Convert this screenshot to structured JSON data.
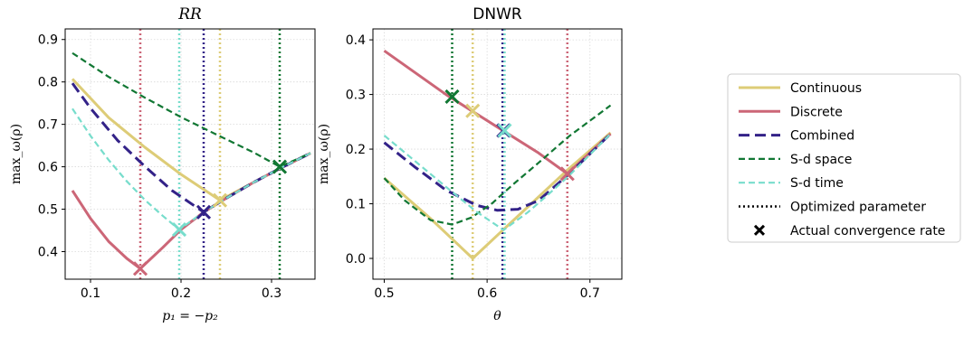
{
  "series_styles": {
    "Continuous": {
      "color": "#DDCC77",
      "dash": "",
      "width": 3
    },
    "Discrete": {
      "color": "#CC6677",
      "dash": "",
      "width": 3
    },
    "Combined": {
      "color": "#332288",
      "dash": "12,6",
      "width": 3
    },
    "S-d space": {
      "color": "#117733",
      "dash": "7,4",
      "width": 2.2
    },
    "S-d time": {
      "color": "#77DDCC",
      "dash": "7,4",
      "width": 2.2
    },
    "Optimized parameter": {
      "color": "#000000",
      "dash": "2,3",
      "width": 2.5
    }
  },
  "legend": {
    "placement": "right",
    "entries": [
      {
        "label": "Continuous",
        "kind": "solid"
      },
      {
        "label": "Discrete",
        "kind": "solid"
      },
      {
        "label": "Combined",
        "kind": "dashed"
      },
      {
        "label": "S-d space",
        "kind": "dashed"
      },
      {
        "label": "S-d time",
        "kind": "dashed"
      },
      {
        "label": "Optimized parameter",
        "kind": "dotted"
      },
      {
        "label": "Actual convergence rate",
        "kind": "marker"
      }
    ]
  },
  "chart_data": [
    {
      "type": "line",
      "title": "RR",
      "xlabel": "p₁ = −p₂",
      "ylabel": "max_ω(ρ)",
      "xlim": [
        0.072,
        0.348
      ],
      "ylim": [
        0.335,
        0.925
      ],
      "xticks": [
        0.1,
        0.2,
        0.3
      ],
      "xtick_labels": [
        "0.1",
        "0.2",
        "0.3"
      ],
      "yticks": [
        0.4,
        0.5,
        0.6,
        0.7,
        0.8,
        0.9
      ],
      "ytick_labels": [
        "0.4",
        "0.5",
        "0.6",
        "0.7",
        "0.8",
        "0.9"
      ],
      "grid": true,
      "series": [
        {
          "name": "Continuous",
          "x": [
            0.08,
            0.12,
            0.16,
            0.2,
            0.243,
            0.28,
            0.31,
            0.343
          ],
          "y": [
            0.807,
            0.716,
            0.646,
            0.582,
            0.521,
            0.563,
            0.597,
            0.632
          ]
        },
        {
          "name": "Discrete",
          "x": [
            0.08,
            0.1,
            0.12,
            0.14,
            0.155,
            0.18,
            0.2,
            0.225,
            0.25,
            0.28,
            0.31,
            0.343
          ],
          "y": [
            0.544,
            0.478,
            0.424,
            0.384,
            0.36,
            0.41,
            0.452,
            0.493,
            0.526,
            0.563,
            0.597,
            0.632
          ]
        },
        {
          "name": "Combined",
          "x": [
            0.08,
            0.1,
            0.13,
            0.16,
            0.19,
            0.225,
            0.25,
            0.28,
            0.31,
            0.343
          ],
          "y": [
            0.797,
            0.738,
            0.662,
            0.601,
            0.544,
            0.493,
            0.526,
            0.563,
            0.597,
            0.632
          ]
        },
        {
          "name": "S-d space",
          "x": [
            0.08,
            0.12,
            0.16,
            0.2,
            0.24,
            0.28,
            0.309,
            0.343
          ],
          "y": [
            0.868,
            0.812,
            0.763,
            0.717,
            0.675,
            0.634,
            0.6,
            0.632
          ]
        },
        {
          "name": "S-d time",
          "x": [
            0.08,
            0.1,
            0.12,
            0.14,
            0.16,
            0.18,
            0.198,
            0.225,
            0.25,
            0.28,
            0.31,
            0.343
          ],
          "y": [
            0.737,
            0.673,
            0.616,
            0.566,
            0.522,
            0.484,
            0.452,
            0.493,
            0.526,
            0.563,
            0.597,
            0.632
          ]
        }
      ],
      "optimized_parameter": [
        {
          "series": "Discrete",
          "x": 0.155
        },
        {
          "series": "S-d time",
          "x": 0.198
        },
        {
          "series": "Combined",
          "x": 0.225
        },
        {
          "series": "Continuous",
          "x": 0.243
        },
        {
          "series": "S-d space",
          "x": 0.309
        }
      ],
      "actual_convergence_rate": [
        {
          "series": "Discrete",
          "x": 0.155,
          "y": 0.36
        },
        {
          "series": "S-d time",
          "x": 0.198,
          "y": 0.452
        },
        {
          "series": "Combined",
          "x": 0.225,
          "y": 0.493
        },
        {
          "series": "Continuous",
          "x": 0.243,
          "y": 0.521
        },
        {
          "series": "S-d space",
          "x": 0.309,
          "y": 0.6
        }
      ]
    },
    {
      "type": "line",
      "title": "DNWR",
      "xlabel": "θ",
      "ylabel": "max_ω(ρ)",
      "xlim": [
        0.489,
        0.731
      ],
      "ylim": [
        -0.038,
        0.42
      ],
      "xticks": [
        0.5,
        0.6,
        0.7
      ],
      "xtick_labels": [
        "0.5",
        "0.6",
        "0.7"
      ],
      "yticks": [
        0.0,
        0.1,
        0.2,
        0.3,
        0.4
      ],
      "ytick_labels": [
        "0.0",
        "0.1",
        "0.2",
        "0.3",
        "0.4"
      ],
      "grid": true,
      "series": [
        {
          "name": "Continuous",
          "x": [
            0.5,
            0.545,
            0.586,
            0.62,
            0.68,
            0.72
          ],
          "y": [
            0.147,
            0.073,
            0.0,
            0.06,
            0.165,
            0.23
          ]
        },
        {
          "name": "Discrete",
          "x": [
            0.5,
            0.56,
            0.617,
            0.65,
            0.678,
            0.72
          ],
          "y": [
            0.38,
            0.3,
            0.232,
            0.193,
            0.155,
            0.228
          ]
        },
        {
          "name": "Combined",
          "x": [
            0.5,
            0.53,
            0.56,
            0.59,
            0.61,
            0.63,
            0.65,
            0.68,
            0.72
          ],
          "y": [
            0.212,
            0.167,
            0.125,
            0.097,
            0.088,
            0.09,
            0.106,
            0.155,
            0.228
          ]
        },
        {
          "name": "S-d space",
          "x": [
            0.5,
            0.52,
            0.545,
            0.566,
            0.585,
            0.605,
            0.625,
            0.65,
            0.68,
            0.72
          ],
          "y": [
            0.147,
            0.106,
            0.07,
            0.062,
            0.075,
            0.101,
            0.135,
            0.175,
            0.224,
            0.28
          ]
        },
        {
          "name": "S-d time",
          "x": [
            0.5,
            0.53,
            0.56,
            0.59,
            0.616,
            0.64,
            0.66,
            0.68,
            0.72
          ],
          "y": [
            0.225,
            0.178,
            0.131,
            0.085,
            0.052,
            0.085,
            0.118,
            0.152,
            0.228
          ]
        }
      ],
      "optimized_parameter": [
        {
          "series": "S-d space",
          "x": 0.566
        },
        {
          "series": "Continuous",
          "x": 0.586
        },
        {
          "series": "Combined",
          "x": 0.615
        },
        {
          "series": "S-d time",
          "x": 0.617
        },
        {
          "series": "Discrete",
          "x": 0.678
        }
      ],
      "actual_convergence_rate": [
        {
          "series": "S-d space",
          "x": 0.566,
          "y": 0.296
        },
        {
          "series": "Continuous",
          "x": 0.586,
          "y": 0.27
        },
        {
          "series": "Combined",
          "x": 0.616,
          "y": 0.234
        },
        {
          "series": "S-d time",
          "x": 0.617,
          "y": 0.234
        },
        {
          "series": "Discrete",
          "x": 0.678,
          "y": 0.155
        }
      ]
    }
  ]
}
